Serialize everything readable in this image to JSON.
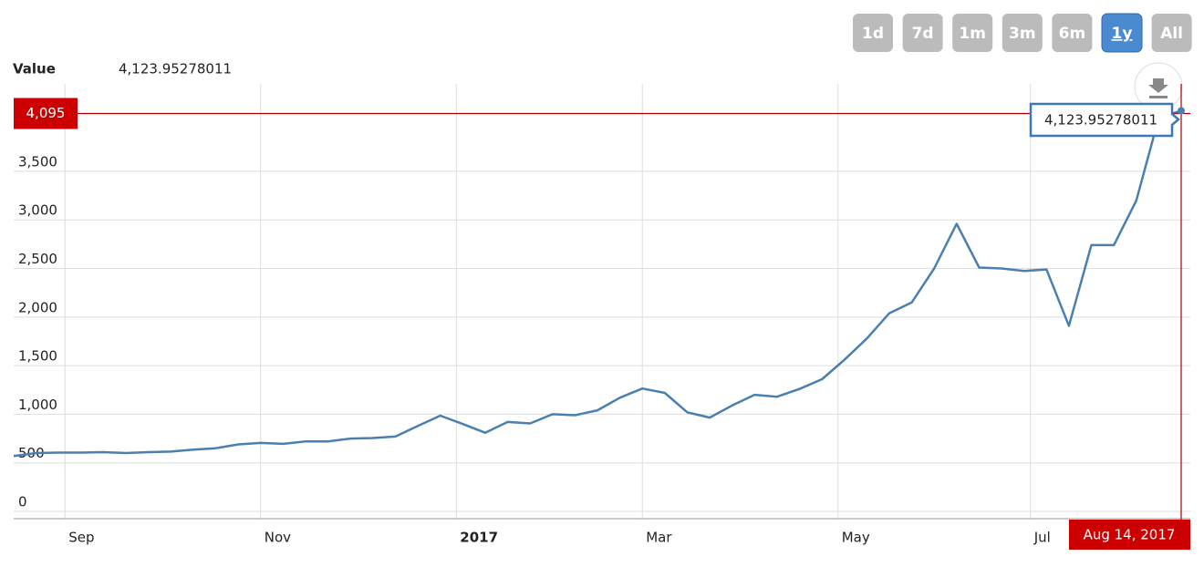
{
  "buttons": [
    "1d",
    "7d",
    "1m",
    "3m",
    "6m",
    "1y",
    "All"
  ],
  "selected_button": 5,
  "chart_data": {
    "type": "line",
    "value_label": "Value",
    "hover_value": "4,123.95278011",
    "tooltip": "4,123.95278011",
    "crosshair_y": {
      "value": 4095,
      "label": "4,095"
    },
    "crosshair_x_label": "Aug 14, 2017",
    "color": "#4a7fb0",
    "x": [
      0,
      7,
      14,
      21,
      28,
      35,
      42,
      49,
      56,
      63,
      70,
      77,
      84,
      91,
      98,
      105,
      112,
      119,
      126,
      133,
      140,
      147,
      154,
      161,
      168,
      175,
      182,
      189,
      196,
      203,
      210,
      217,
      224,
      231,
      238,
      245,
      252,
      259,
      266,
      273,
      280,
      287,
      294,
      301,
      308,
      315,
      322,
      329,
      336,
      343,
      350,
      357,
      364
    ],
    "values": [
      570,
      600,
      605,
      605,
      610,
      600,
      610,
      615,
      635,
      650,
      690,
      705,
      695,
      720,
      720,
      750,
      755,
      770,
      880,
      985,
      900,
      810,
      920,
      905,
      1000,
      990,
      1040,
      1170,
      1265,
      1220,
      1020,
      965,
      1090,
      1200,
      1180,
      1260,
      1360,
      1560,
      1780,
      2040,
      2150,
      2500,
      2960,
      2510,
      2500,
      2475,
      2490,
      1910,
      2740,
      2740,
      3200,
      4050,
      4123.95278011
    ],
    "xlim": [
      0,
      364
    ],
    "xticks": [
      {
        "value": 16,
        "label": "Sep"
      },
      {
        "value": 77,
        "label": "Nov"
      },
      {
        "value": 138,
        "label": "2017"
      },
      {
        "value": 196,
        "label": "Mar"
      },
      {
        "value": 257,
        "label": "May"
      },
      {
        "value": 317,
        "label": "Jul"
      }
    ],
    "ylim": [
      0,
      4400
    ],
    "yticks": [
      0,
      500,
      {
        "value": 1000,
        "label": "1,000"
      },
      {
        "value": 1500,
        "label": "1,500"
      },
      {
        "value": 2000,
        "label": "2,000"
      },
      {
        "value": 2500,
        "label": "2,500"
      },
      {
        "value": 3000,
        "label": "3,000"
      },
      {
        "value": 3500,
        "label": "3,500"
      }
    ],
    "grid": true
  }
}
